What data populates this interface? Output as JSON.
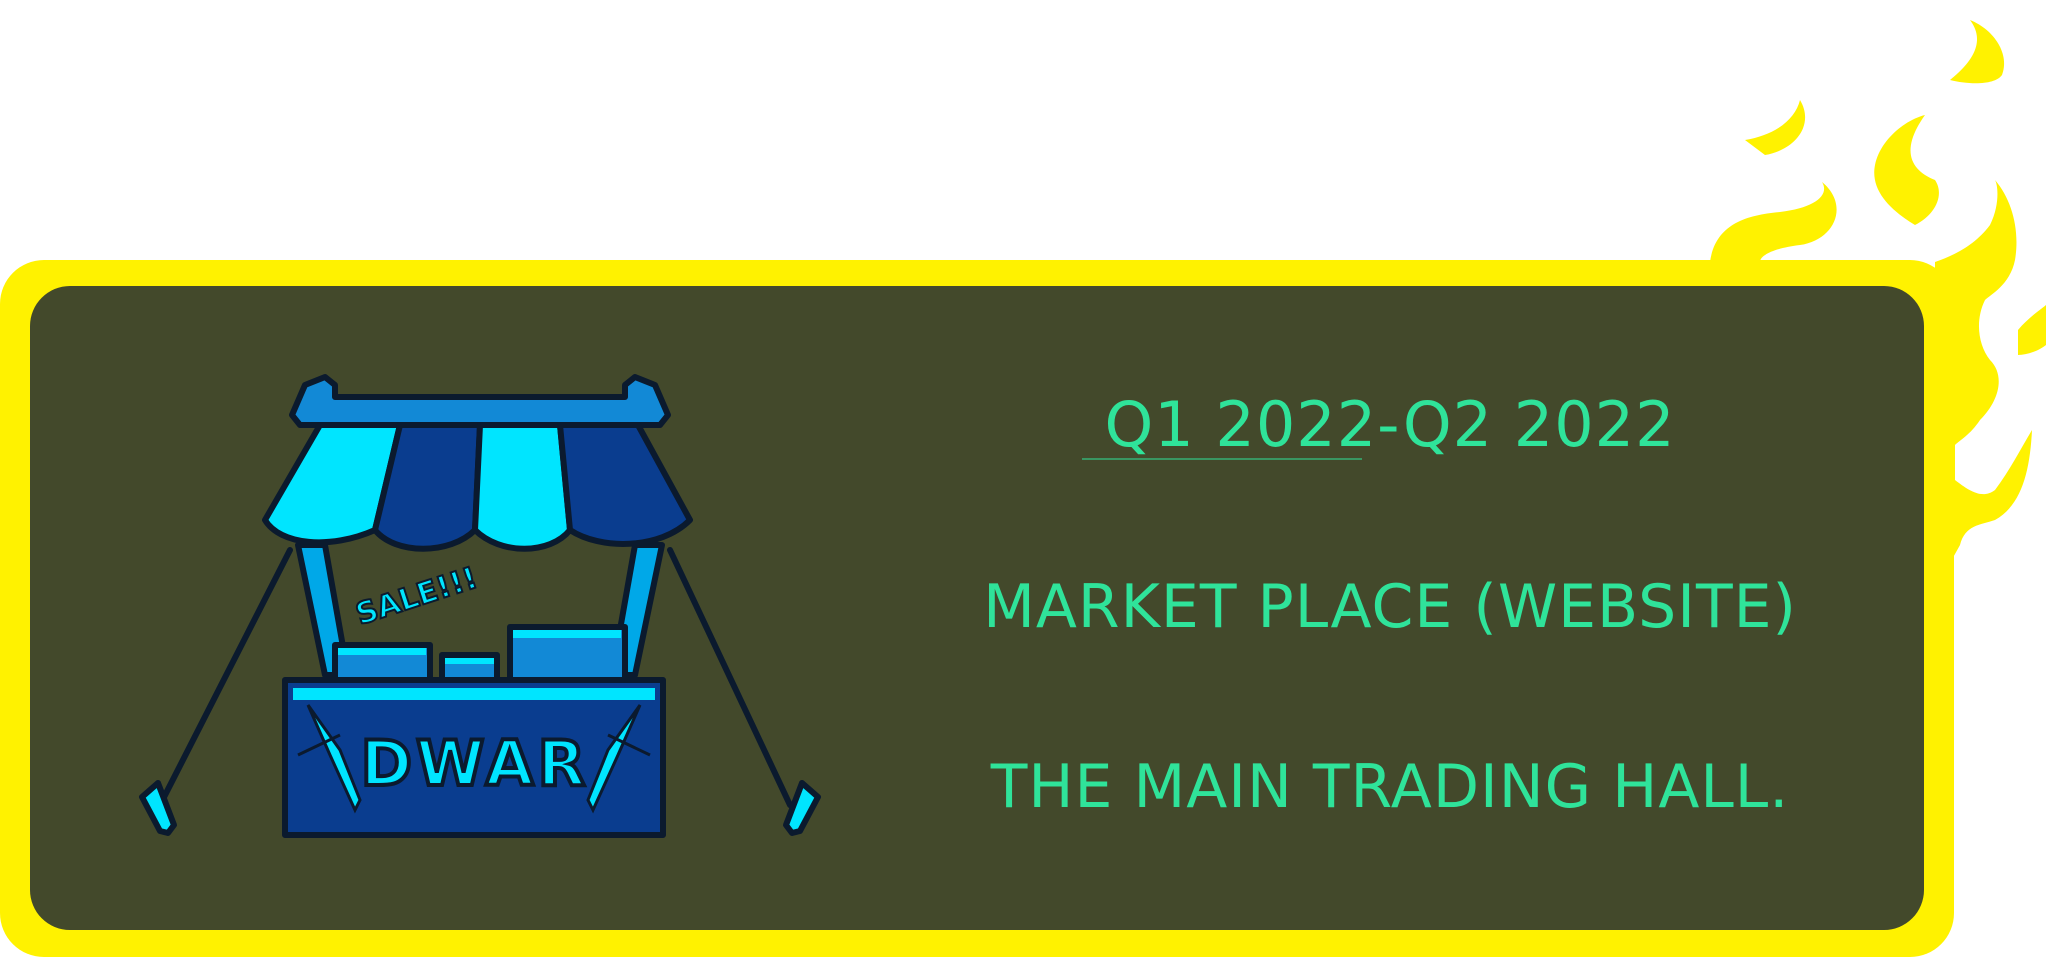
{
  "roadmap_card": {
    "period": "Q1 2022-Q2 2022",
    "title": "MARKET PLACE (WEBSITE)",
    "description": "THE MAIN TRADING HALL."
  },
  "illustration": {
    "sign_text": "DWAR",
    "sale_text": "SALE!!!"
  },
  "colors": {
    "frame": "#fff200",
    "panel": "#43492b",
    "text_accent": "#2fe39a",
    "stall_light": "#00e5ff",
    "stall_dark": "#0a3d8f"
  },
  "icons": [
    "market-stall-icon",
    "sword-icon",
    "flame-icon"
  ]
}
